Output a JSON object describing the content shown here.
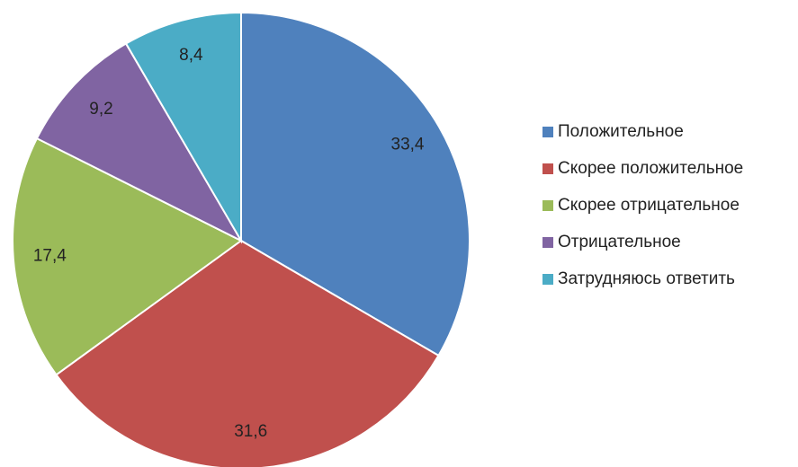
{
  "chart_data": {
    "type": "pie",
    "categories": [
      "Положительное",
      "Скорее положительное",
      "Скорее отрицательное",
      "Отрицательное",
      "Затрудняюсь ответить"
    ],
    "values": [
      33.4,
      31.6,
      17.4,
      9.2,
      8.4
    ],
    "value_labels": [
      "33,4",
      "31,6",
      "17,4",
      "9,2",
      "8,4"
    ],
    "colors": [
      "#4f81bd",
      "#c0504d",
      "#9bbb59",
      "#8064a2",
      "#4bacc6"
    ],
    "legend": "right"
  }
}
